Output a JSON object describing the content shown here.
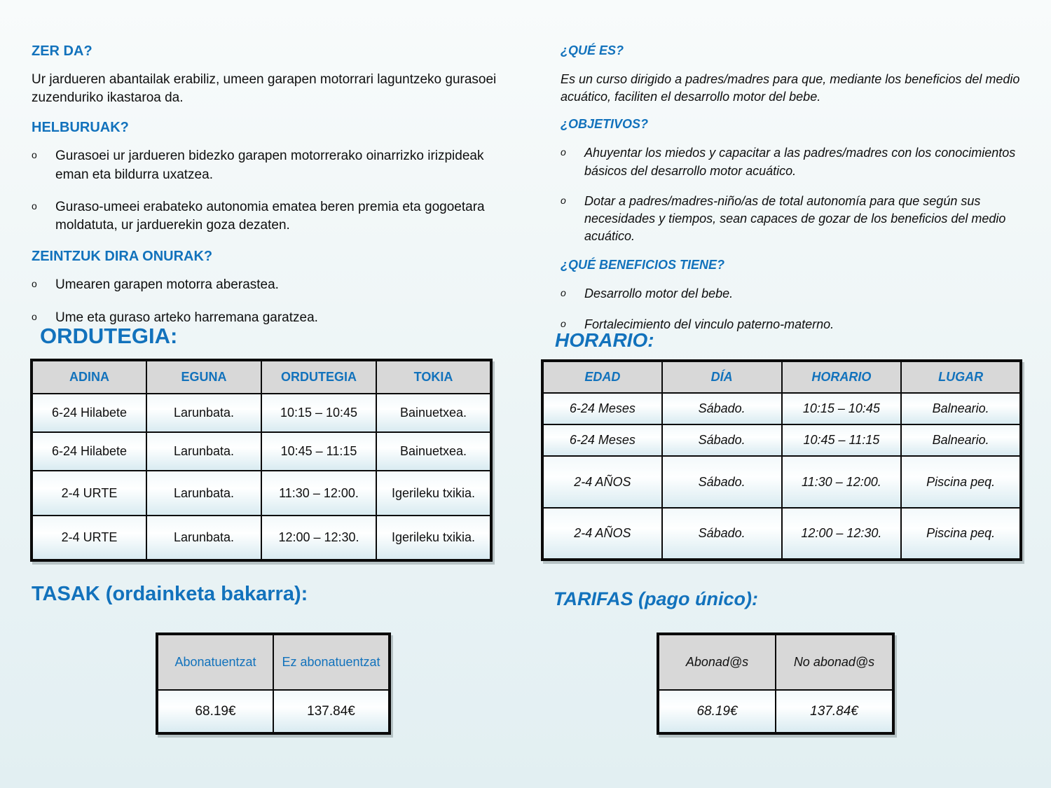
{
  "page": {
    "accent_blue": "#1272bc",
    "header_gray": "#d8d8d8",
    "bg_top": "#f8fbfb",
    "bg_bottom": "#e2eff2",
    "bullet_glyph": "o"
  },
  "left": {
    "what_heading": "ZER DA?",
    "what_text": "Ur jardueren abantailak erabiliz, umeen garapen motorrari laguntzeko gurasoei zuzenduriko ikastaroa da.",
    "goals_heading": "HELBURUAK?",
    "goals_bullets": [
      "Gurasoei ur jardueren bidezko garapen motorrerako oinarrizko irizpideak eman eta bildurra uxatzea.",
      "Guraso-umeei erabateko autonomia ematea beren premia eta gogoetara moldatuta, ur jarduerekin goza dezaten."
    ],
    "benefits_heading": "ZEINTZUK DIRA ONURAK?",
    "benefits_bullets": [
      "Umearen garapen motorra aberastea.",
      "Ume eta guraso arteko harremana garatzea."
    ],
    "schedule_title": "ORDUTEGIA:",
    "schedule": {
      "headers": [
        "ADINA",
        "EGUNA",
        "ORDUTEGIA",
        "TOKIA"
      ],
      "rows": [
        [
          "6-24 Hilabete",
          "Larunbata.",
          "10:15 – 10:45",
          "Bainuetxea."
        ],
        [
          "6-24 Hilabete",
          "Larunbata.",
          "10:45 – 11:15",
          "Bainuetxea."
        ],
        [
          "2-4 URTE",
          "Larunbata.",
          "11:30 – 12:00.",
          "Igerileku txikia."
        ],
        [
          "2-4 URTE",
          "Larunbata.",
          "12:00 – 12:30.",
          "Igerileku txikia."
        ]
      ]
    },
    "price_title": "TASAK (ordainketa bakarra):",
    "price": {
      "headers": [
        "Abonatuentzat",
        "Ez abonatuentzat"
      ],
      "values": [
        "68.19€",
        "137.84€"
      ]
    }
  },
  "right": {
    "what_heading": "¿QUÉ ES?",
    "what_text": "Es un curso dirigido a padres/madres para que, mediante los beneficios del medio acuático, faciliten el desarrollo motor del bebe.",
    "goals_heading": "¿OBJETIVOS?",
    "goals_bullets": [
      "Ahuyentar los miedos y capacitar a las padres/madres con los conocimientos básicos del desarrollo motor acuático.",
      "Dotar a padres/madres-niño/as de total autonomía para que según sus necesidades y tiempos, sean capaces de gozar de los beneficios del medio acuático."
    ],
    "benefits_heading": "¿QUÉ BENEFICIOS TIENE?",
    "benefits_bullets": [
      "Desarrollo motor del bebe.",
      "Fortalecimiento del vinculo paterno-materno."
    ],
    "schedule_title": "HORARIO:",
    "schedule": {
      "headers": [
        "EDAD",
        "DÍA",
        "HORARIO",
        "LUGAR"
      ],
      "rows": [
        [
          "6-24 Meses",
          "Sábado.",
          "10:15 – 10:45",
          "Balneario."
        ],
        [
          "6-24 Meses",
          "Sábado.",
          "10:45 – 11:15",
          "Balneario."
        ],
        [
          "2-4 AÑOS",
          "Sábado.",
          "11:30 – 12:00.",
          "Piscina peq."
        ],
        [
          "2-4 AÑOS",
          "Sábado.",
          "12:00 – 12:30.",
          "Piscina peq."
        ]
      ]
    },
    "price_title": "TARIFAS (pago único):",
    "price": {
      "headers": [
        "Abonad@s",
        "No abonad@s"
      ],
      "values": [
        "68.19€",
        "137.84€"
      ]
    }
  }
}
